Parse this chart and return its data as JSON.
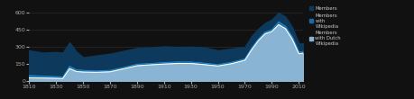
{
  "background_color": "#111111",
  "plot_bg_color": "#111111",
  "xlim": [
    1810,
    2013
  ],
  "ylim": [
    0,
    650
  ],
  "yticks": [
    0,
    150,
    300,
    450,
    600
  ],
  "xticks": [
    1810,
    1830,
    1850,
    1870,
    1890,
    1910,
    1930,
    1950,
    1970,
    1990,
    2010
  ],
  "years": [
    1810,
    1820,
    1830,
    1835,
    1840,
    1845,
    1850,
    1860,
    1870,
    1880,
    1890,
    1900,
    1910,
    1920,
    1930,
    1940,
    1950,
    1960,
    1970,
    1975,
    1980,
    1985,
    1990,
    1995,
    2000,
    2005,
    2010,
    2013
  ],
  "members": [
    270,
    250,
    255,
    250,
    340,
    260,
    210,
    225,
    240,
    265,
    290,
    295,
    305,
    300,
    302,
    295,
    270,
    285,
    300,
    395,
    460,
    510,
    540,
    600,
    565,
    475,
    330,
    330
  ],
  "members_wiki": [
    50,
    45,
    40,
    38,
    130,
    100,
    95,
    90,
    95,
    120,
    148,
    155,
    163,
    168,
    168,
    158,
    145,
    165,
    195,
    290,
    370,
    430,
    450,
    520,
    480,
    390,
    255,
    260
  ],
  "members_dutch_wiki": [
    30,
    28,
    25,
    23,
    110,
    85,
    80,
    78,
    82,
    108,
    135,
    143,
    150,
    155,
    155,
    145,
    133,
    153,
    183,
    275,
    355,
    415,
    435,
    495,
    460,
    370,
    240,
    245
  ],
  "color_members": "#0d3a5c",
  "color_wiki": "#1a6aaa",
  "color_dutch_wiki": "#8ab4d4",
  "color_line": "#2288cc",
  "color_line2": "#ffffff",
  "grid_color": "#333333",
  "tick_color": "#aaaaaa",
  "text_color": "#cccccc",
  "legend_labels": [
    "Members",
    "Members\nwith\nWikipedia",
    "Members\nwith Dutch\nWikipedia"
  ]
}
